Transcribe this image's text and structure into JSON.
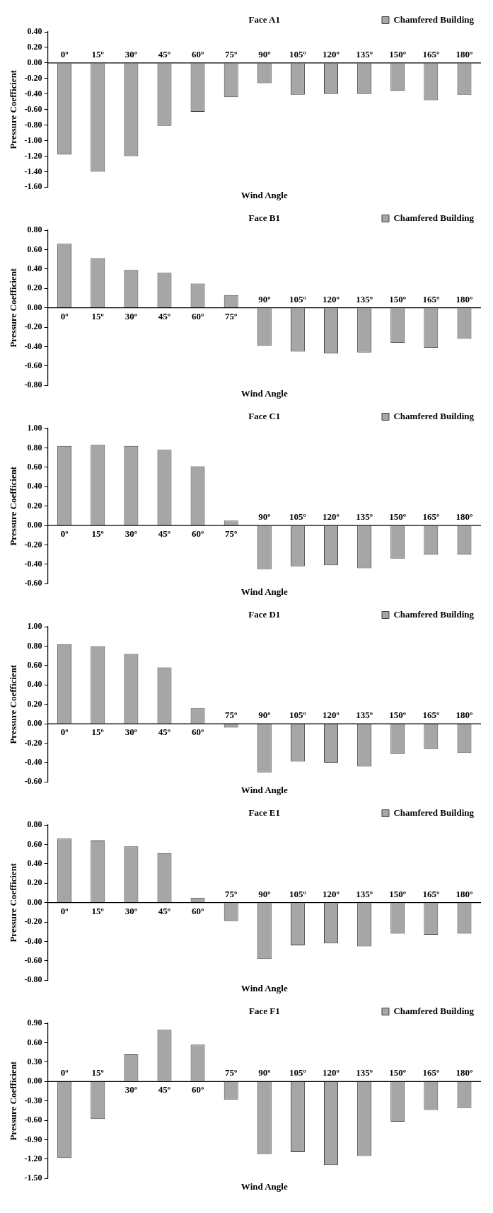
{
  "chart_data": [
    {
      "type": "bar",
      "title": "Face A1",
      "xlabel": "Wind Angle",
      "ylabel": "Pressure Coefficient",
      "categories": [
        "0º",
        "15º",
        "30º",
        "45º",
        "60º",
        "75º",
        "90º",
        "105º",
        "120º",
        "135º",
        "150º",
        "165º",
        "180º"
      ],
      "series": [
        {
          "name": "Chamfered Building",
          "color": "#a6a6a6",
          "values": [
            -1.18,
            -1.4,
            -1.2,
            -0.81,
            -0.63,
            -0.44,
            -0.26,
            -0.41,
            -0.4,
            -0.4,
            -0.36,
            -0.48,
            -0.41
          ]
        }
      ],
      "ylim": [
        -1.6,
        0.4
      ],
      "yticks": [
        {
          "value": -1.6,
          "label": "-1.60"
        },
        {
          "value": -1.4,
          "label": "-1.40"
        },
        {
          "value": -1.2,
          "label": "-1.20"
        },
        {
          "value": -1.0,
          "label": "-1.00"
        },
        {
          "value": -0.8,
          "label": "-0.80"
        },
        {
          "value": -0.6,
          "label": "-0.60"
        },
        {
          "value": -0.4,
          "label": "-0.40"
        },
        {
          "value": -0.2,
          "label": "-0.20"
        },
        {
          "value": 0,
          "label": "0.00"
        },
        {
          "value": 0.2,
          "label": "0.20"
        },
        {
          "value": 0.4,
          "label": "0.40"
        }
      ],
      "grid": false,
      "legend": "top right"
    },
    {
      "type": "bar",
      "title": "Face B1",
      "xlabel": "Wind Angle",
      "ylabel": "Pressure Coefficient",
      "categories": [
        "0º",
        "15º",
        "30º",
        "45º",
        "60º",
        "75º",
        "90º",
        "105º",
        "120º",
        "135º",
        "150º",
        "165º",
        "180º"
      ],
      "series": [
        {
          "name": "Chamfered Building",
          "color": "#a6a6a6",
          "values": [
            0.66,
            0.51,
            0.39,
            0.36,
            0.25,
            0.13,
            -0.39,
            -0.45,
            -0.47,
            -0.46,
            -0.36,
            -0.41,
            -0.32
          ]
        }
      ],
      "ylim": [
        -0.8,
        0.8
      ],
      "yticks": [
        {
          "value": -0.8,
          "label": "-0.80"
        },
        {
          "value": -0.6,
          "label": "-0.60"
        },
        {
          "value": -0.4,
          "label": "-0.40"
        },
        {
          "value": -0.2,
          "label": "-0.20"
        },
        {
          "value": 0,
          "label": "0.00"
        },
        {
          "value": 0.2,
          "label": "0.20"
        },
        {
          "value": 0.4,
          "label": "0.40"
        },
        {
          "value": 0.6,
          "label": "0.60"
        },
        {
          "value": 0.8,
          "label": "0.80"
        }
      ],
      "grid": false,
      "legend": "top right"
    },
    {
      "type": "bar",
      "title": "Face C1",
      "xlabel": "Wind Angle",
      "ylabel": "Pressure Coefficient",
      "categories": [
        "0º",
        "15º",
        "30º",
        "45º",
        "60º",
        "75º",
        "90º",
        "105º",
        "120º",
        "135º",
        "150º",
        "165º",
        "180º"
      ],
      "series": [
        {
          "name": "Chamfered Building",
          "color": "#a6a6a6",
          "values": [
            0.82,
            0.83,
            0.82,
            0.78,
            0.61,
            0.05,
            -0.45,
            -0.42,
            -0.41,
            -0.44,
            -0.34,
            -0.3,
            -0.3
          ]
        }
      ],
      "ylim": [
        -0.6,
        1.0
      ],
      "yticks": [
        {
          "value": -0.6,
          "label": "-0.60"
        },
        {
          "value": -0.4,
          "label": "-0.40"
        },
        {
          "value": -0.2,
          "label": "-0.20"
        },
        {
          "value": 0,
          "label": "0.00"
        },
        {
          "value": 0.2,
          "label": "0.20"
        },
        {
          "value": 0.4,
          "label": "0.40"
        },
        {
          "value": 0.6,
          "label": "0.60"
        },
        {
          "value": 0.8,
          "label": "0.80"
        },
        {
          "value": 1.0,
          "label": "1.00"
        }
      ],
      "grid": false,
      "legend": "top right"
    },
    {
      "type": "bar",
      "title": "Face D1",
      "xlabel": "Wind Angle",
      "ylabel": "Pressure Coefficient",
      "categories": [
        "0º",
        "15º",
        "30º",
        "45º",
        "60º",
        "75º",
        "90º",
        "105º",
        "120º",
        "135º",
        "150º",
        "165º",
        "180º"
      ],
      "series": [
        {
          "name": "Chamfered Building",
          "color": "#a6a6a6",
          "values": [
            0.82,
            0.8,
            0.72,
            0.58,
            0.16,
            -0.04,
            -0.5,
            -0.39,
            -0.4,
            -0.44,
            -0.31,
            -0.26,
            -0.3
          ]
        }
      ],
      "ylim": [
        -0.6,
        1.0
      ],
      "yticks": [
        {
          "value": -0.6,
          "label": "-0.60"
        },
        {
          "value": -0.4,
          "label": "-0.40"
        },
        {
          "value": -0.2,
          "label": "-0.20"
        },
        {
          "value": 0,
          "label": "0.00"
        },
        {
          "value": 0.2,
          "label": "0.20"
        },
        {
          "value": 0.4,
          "label": "0.40"
        },
        {
          "value": 0.6,
          "label": "0.60"
        },
        {
          "value": 0.8,
          "label": "0.80"
        },
        {
          "value": 1.0,
          "label": "1.00"
        }
      ],
      "grid": false,
      "legend": "top right"
    },
    {
      "type": "bar",
      "title": "Face E1",
      "xlabel": "Wind Angle",
      "ylabel": "Pressure Coefficient",
      "categories": [
        "0º",
        "15º",
        "30º",
        "45º",
        "60º",
        "75º",
        "90º",
        "105º",
        "120º",
        "135º",
        "150º",
        "165º",
        "180º"
      ],
      "series": [
        {
          "name": "Chamfered Building",
          "color": "#a6a6a6",
          "values": [
            0.66,
            0.64,
            0.58,
            0.51,
            0.05,
            -0.19,
            -0.58,
            -0.44,
            -0.42,
            -0.45,
            -0.32,
            -0.33,
            -0.32
          ]
        }
      ],
      "ylim": [
        -0.8,
        0.8
      ],
      "yticks": [
        {
          "value": -0.8,
          "label": "-0.80"
        },
        {
          "value": -0.6,
          "label": "-0.60"
        },
        {
          "value": -0.4,
          "label": "-0.40"
        },
        {
          "value": -0.2,
          "label": "-0.20"
        },
        {
          "value": 0,
          "label": "0.00"
        },
        {
          "value": 0.2,
          "label": "0.20"
        },
        {
          "value": 0.4,
          "label": "0.40"
        },
        {
          "value": 0.6,
          "label": "0.60"
        },
        {
          "value": 0.8,
          "label": "0.80"
        }
      ],
      "grid": false,
      "legend": "top right"
    },
    {
      "type": "bar",
      "title": "Face F1",
      "xlabel": "Wind Angle",
      "ylabel": "Pressure Coefficient",
      "categories": [
        "0º",
        "15º",
        "30º",
        "45º",
        "60º",
        "75º",
        "90º",
        "105º",
        "120º",
        "135º",
        "150º",
        "165º",
        "180º"
      ],
      "series": [
        {
          "name": "Chamfered Building",
          "color": "#a6a6a6",
          "values": [
            -1.18,
            -0.58,
            0.42,
            0.8,
            0.57,
            -0.28,
            -1.12,
            -1.09,
            -1.29,
            -1.15,
            -0.62,
            -0.44,
            -0.41
          ]
        }
      ],
      "ylim": [
        -1.5,
        0.9
      ],
      "yticks": [
        {
          "value": -1.5,
          "label": "-1.50"
        },
        {
          "value": -1.2,
          "label": "-1.20"
        },
        {
          "value": -0.9,
          "label": "-0.90"
        },
        {
          "value": -0.6,
          "label": "-0.60"
        },
        {
          "value": -0.3,
          "label": "-0.30"
        },
        {
          "value": 0,
          "label": "0.00"
        },
        {
          "value": 0.3,
          "label": "0.30"
        },
        {
          "value": 0.6,
          "label": "0.60"
        },
        {
          "value": 0.9,
          "label": "0.90"
        }
      ],
      "grid": false,
      "legend": "top right"
    }
  ]
}
